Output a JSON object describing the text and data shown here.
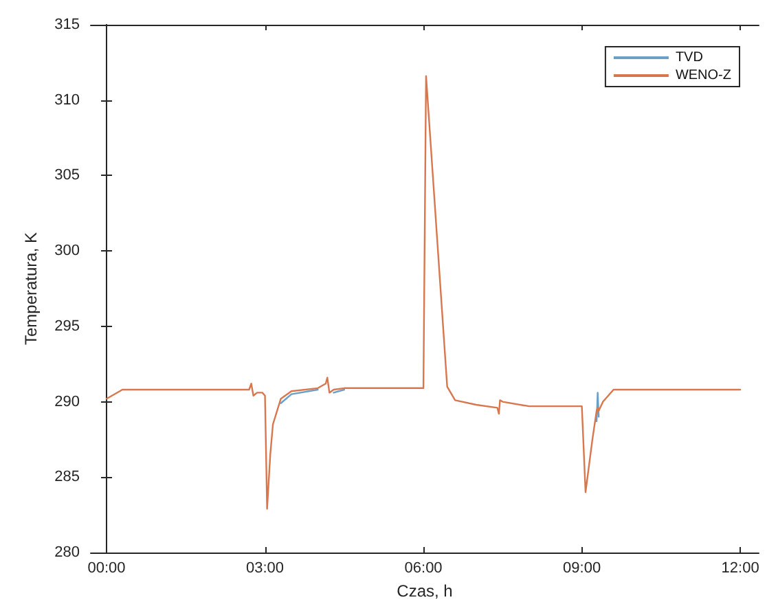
{
  "chart_data": {
    "type": "line",
    "xlabel": "Czas, h",
    "ylabel": "Temperatura, K",
    "x": [
      0,
      0.3,
      2.7,
      2.74,
      2.78,
      2.85,
      2.95,
      3.0,
      3.04,
      3.1,
      3.15,
      3.3,
      3.5,
      4.0,
      4.15,
      4.18,
      4.22,
      4.3,
      4.5,
      6.0,
      6.05,
      6.45,
      6.6,
      7.0,
      7.4,
      7.43,
      7.45,
      7.5,
      8.0,
      9.0,
      9.07,
      9.2,
      9.28,
      9.3,
      9.32,
      9.4,
      9.6,
      12.0
    ],
    "series": [
      {
        "name": "TVD",
        "color": "#6a9fc8",
        "values": [
          null,
          null,
          null,
          null,
          null,
          null,
          null,
          null,
          null,
          null,
          null,
          289.9,
          290.5,
          290.8,
          null,
          null,
          null,
          290.6,
          290.8,
          null,
          null,
          null,
          null,
          null,
          null,
          null,
          null,
          null,
          null,
          null,
          null,
          null,
          288.7,
          290.6,
          289.0,
          null,
          null,
          null
        ]
      },
      {
        "name": "WENO-Z",
        "color": "#d8774e",
        "values": [
          290.2,
          290.8,
          290.8,
          291.2,
          290.4,
          290.6,
          290.6,
          290.4,
          282.9,
          286.5,
          288.5,
          290.2,
          290.7,
          290.9,
          291.2,
          291.6,
          290.6,
          290.8,
          290.9,
          290.9,
          311.6,
          291.0,
          290.1,
          289.8,
          289.6,
          289.2,
          290.1,
          290.0,
          289.7,
          289.7,
          284.0,
          287.5,
          289.4,
          289.6,
          289.4,
          290.0,
          290.8,
          290.8
        ]
      }
    ],
    "xlim": [
      -0.3,
      12.35
    ],
    "xticks": [
      {
        "value": 0,
        "label": "00:00"
      },
      {
        "value": 3,
        "label": "03:00"
      },
      {
        "value": 6,
        "label": "06:00"
      },
      {
        "value": 9,
        "label": "09:00"
      },
      {
        "value": 12,
        "label": "12:00"
      }
    ],
    "ylim": [
      280,
      315
    ],
    "yticks": [
      280,
      285,
      290,
      295,
      300,
      305,
      310,
      315
    ],
    "grid": false,
    "legend": "top right",
    "marker": "none",
    "line_style": "solid"
  }
}
